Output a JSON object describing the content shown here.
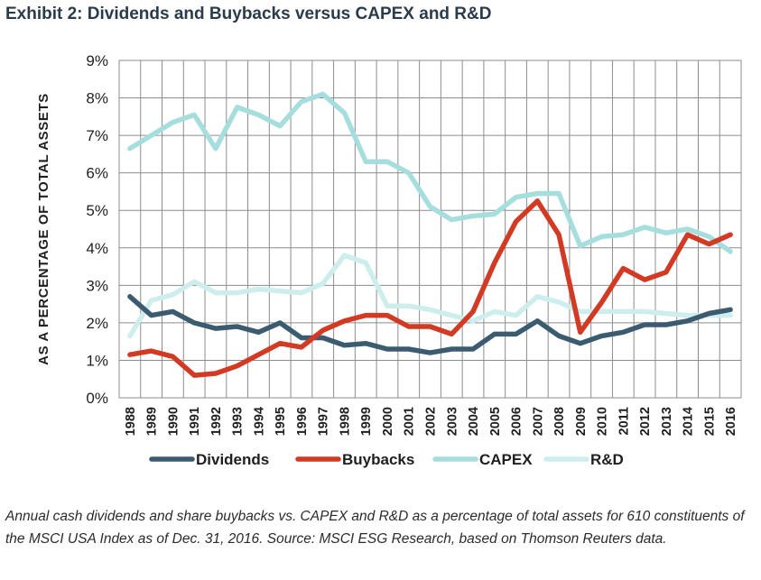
{
  "title": "Exhibit 2: Dividends and Buybacks versus CAPEX and R&D",
  "caption": "Annual cash dividends and share buybacks vs. CAPEX and R&D as a percentage of total assets for 610 constituents of the MSCI USA Index as of Dec. 31, 2016. Source: MSCI ESG Research, based on Thomson Reuters data.",
  "chart_data": {
    "type": "line",
    "title": "Exhibit 2: Dividends and Buybacks versus CAPEX and R&D",
    "xlabel": "",
    "ylabel": "AS A PERCENTAGE OF TOTAL ASSETS",
    "ylim": [
      0,
      9
    ],
    "yticks": [
      0,
      1,
      2,
      3,
      4,
      5,
      6,
      7,
      8,
      9
    ],
    "ytick_labels": [
      "0%",
      "1%",
      "2%",
      "3%",
      "4%",
      "5%",
      "6%",
      "7%",
      "8%",
      "9%"
    ],
    "grid": true,
    "legend_position": "bottom",
    "categories": [
      "1988",
      "1989",
      "1990",
      "1991",
      "1992",
      "1993",
      "1994",
      "1995",
      "1996",
      "1997",
      "1998",
      "1999",
      "2000",
      "2001",
      "2002",
      "2003",
      "2004",
      "2005",
      "2006",
      "2007",
      "2008",
      "2009",
      "2010",
      "2011",
      "2012",
      "2013",
      "2014",
      "2015",
      "2016"
    ],
    "series": [
      {
        "name": "Dividends",
        "color": "#3b5b70",
        "values": [
          2.7,
          2.2,
          2.3,
          2.0,
          1.85,
          1.9,
          1.75,
          2.0,
          1.6,
          1.6,
          1.4,
          1.45,
          1.3,
          1.3,
          1.2,
          1.3,
          1.3,
          1.7,
          1.7,
          2.05,
          1.65,
          1.45,
          1.65,
          1.75,
          1.95,
          1.95,
          2.05,
          2.25,
          2.35
        ]
      },
      {
        "name": "Buybacks",
        "color": "#d23a24",
        "values": [
          1.15,
          1.25,
          1.1,
          0.6,
          0.65,
          0.85,
          1.15,
          1.45,
          1.35,
          1.8,
          2.05,
          2.2,
          2.2,
          1.9,
          1.9,
          1.7,
          2.3,
          3.6,
          4.7,
          5.25,
          4.35,
          1.75,
          2.55,
          3.45,
          3.15,
          3.35,
          4.35,
          4.1,
          4.35
        ]
      },
      {
        "name": "CAPEX",
        "color": "#a6dede",
        "values": [
          6.65,
          7.0,
          7.35,
          7.55,
          6.65,
          7.75,
          7.55,
          7.25,
          7.9,
          8.1,
          7.6,
          6.3,
          6.3,
          6.0,
          5.1,
          4.75,
          4.85,
          4.9,
          5.35,
          5.45,
          5.45,
          4.05,
          4.3,
          4.35,
          4.55,
          4.4,
          4.5,
          4.3,
          3.9
        ]
      },
      {
        "name": "R&D",
        "color": "#cdeeed",
        "values": [
          1.65,
          2.6,
          2.75,
          3.1,
          2.8,
          2.8,
          2.9,
          2.85,
          2.8,
          3.05,
          3.8,
          3.6,
          2.45,
          2.45,
          2.35,
          2.2,
          2.05,
          2.3,
          2.2,
          2.7,
          2.55,
          2.3,
          2.3,
          2.3,
          2.3,
          2.25,
          2.2,
          2.2,
          2.2
        ]
      }
    ]
  }
}
